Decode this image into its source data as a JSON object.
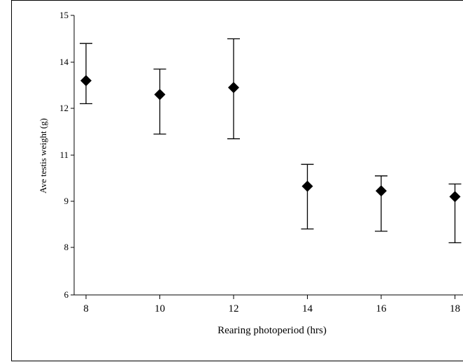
{
  "chart_data": {
    "type": "scatter",
    "title": "",
    "xlabel": "Rearing photoperiod (hrs)",
    "ylabel": "Ave testis weight (g)",
    "x_ticks": [
      "8",
      "10",
      "12",
      "14",
      "16",
      "18"
    ],
    "y_ticks": [
      "6",
      "8",
      "9",
      "11",
      "12",
      "14",
      "15"
    ],
    "xlim": [
      8,
      18
    ],
    "grid": false,
    "error_bars": true,
    "marker": "diamond",
    "points": [
      {
        "x": 8,
        "y": 13.2,
        "err_low": 12.2,
        "err_high": 14.4
      },
      {
        "x": 10,
        "y": 12.6,
        "err_low": 11.45,
        "err_high": 13.7
      },
      {
        "x": 12,
        "y": 12.9,
        "err_low": 11.35,
        "err_high": 14.5
      },
      {
        "x": 14,
        "y": 9.65,
        "err_low": 8.4,
        "err_high": 10.6
      },
      {
        "x": 16,
        "y": 9.45,
        "err_low": 8.35,
        "err_high": 10.1
      },
      {
        "x": 18,
        "y": 9.2,
        "err_low": 8.1,
        "err_high": 9.75
      }
    ]
  }
}
